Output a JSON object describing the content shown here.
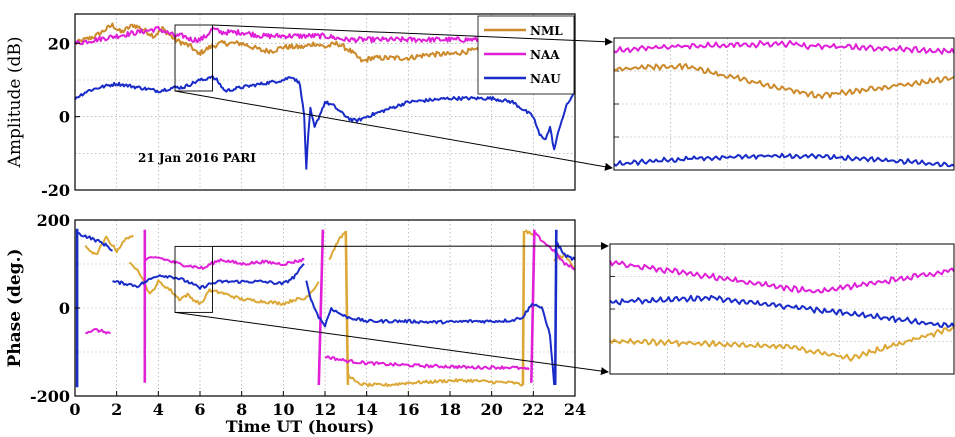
{
  "chart_data": [
    {
      "type": "line",
      "ylabel": "Amplitude (dB)",
      "xlim": [
        0,
        24
      ],
      "ylim": [
        -20,
        28
      ],
      "yticks": [
        20,
        0,
        -20
      ],
      "grid": true,
      "legend": {
        "position": "top-right",
        "entries": [
          "NML",
          "NAA",
          "NAU"
        ]
      },
      "annotation": "21 Jan 2016 PARI",
      "zoom_box_x": [
        4.8,
        6.6
      ],
      "zoom_box_y": [
        7,
        25
      ],
      "series": [
        {
          "name": "NML",
          "color": "#cc8a2a",
          "x": [
            0,
            1,
            1.8,
            2.2,
            2.8,
            3.2,
            3.8,
            4.2,
            4.8,
            5.2,
            5.6,
            5.9,
            6.2,
            6.5,
            7,
            8,
            9,
            9.5,
            10,
            11,
            11.5,
            12,
            12.6,
            13.2,
            13.8,
            14.2,
            15,
            16,
            17,
            18,
            19,
            20,
            21
          ],
          "y": [
            20,
            22,
            25,
            23,
            25,
            24,
            22,
            24,
            21,
            20,
            19,
            17,
            18,
            19,
            20,
            20,
            18,
            18,
            19,
            19,
            20,
            19,
            20,
            18,
            15,
            16,
            16,
            16,
            17,
            17,
            18,
            18,
            19
          ]
        },
        {
          "name": "NAA",
          "color": "#e020d8",
          "x": [
            0,
            1,
            2,
            3,
            4,
            4.8,
            5.2,
            5.6,
            6,
            6.3,
            6.6,
            7,
            8,
            9,
            10,
            11,
            12,
            13,
            14,
            15,
            16,
            17,
            18,
            19,
            20,
            21
          ],
          "y": [
            20,
            21,
            22,
            23,
            24,
            22,
            22,
            21,
            21,
            22,
            24,
            23,
            23,
            22,
            22,
            22,
            22,
            21,
            21,
            21,
            21,
            21,
            21,
            21,
            21,
            21
          ]
        },
        {
          "name": "NAU",
          "color": "#1a2cc8",
          "x": [
            0,
            0.6,
            1.2,
            2,
            3,
            4,
            4.8,
            5.2,
            5.6,
            6,
            6.2,
            6.5,
            6.8,
            7.2,
            8,
            9,
            10,
            10.4,
            10.8,
            11,
            11.1,
            11.2,
            11.3,
            11.5,
            12,
            12.4,
            12.8,
            13.3,
            13.6,
            14,
            15,
            16,
            18,
            20,
            21,
            22,
            22.3,
            22.6,
            22.8,
            23,
            23.3,
            23.6,
            24
          ],
          "y": [
            5,
            7,
            8,
            9,
            8,
            7,
            8,
            8,
            9,
            10,
            10,
            11,
            10,
            7,
            8,
            9,
            10,
            11,
            9,
            0,
            -14,
            -5,
            2,
            -3,
            4,
            3,
            1,
            -1,
            -1,
            0,
            2,
            4,
            5,
            5,
            4,
            0,
            -5,
            -6,
            -3,
            -9,
            -2,
            3,
            7
          ]
        }
      ]
    },
    {
      "type": "line",
      "ylabel": "Phase (deg.)",
      "xlabel": "Time UT (hours)",
      "xlim": [
        0,
        24
      ],
      "ylim": [
        -200,
        200
      ],
      "xticks": [
        0,
        2,
        4,
        6,
        8,
        10,
        12,
        14,
        16,
        18,
        20,
        22,
        24
      ],
      "yticks": [
        200,
        0,
        -200
      ],
      "grid": true,
      "zoom_box_x": [
        4.8,
        6.6
      ],
      "zoom_box_y": [
        -10,
        140
      ],
      "series": [
        {
          "name": "NML",
          "color": "#dca835",
          "segments": [
            {
              "x": [
                0.5,
                1,
                1.5,
                2,
                2.5,
                2.8
              ],
              "y": [
                140,
                120,
                160,
                130,
                160,
                165
              ]
            },
            {
              "x": [
                2.6,
                3,
                3.6,
                4,
                4.6,
                5,
                5.4,
                5.8,
                6.1,
                6.4,
                7,
                8,
                9,
                10,
                10.6,
                11,
                11.4,
                11.7
              ],
              "y": [
                100,
                90,
                30,
                60,
                40,
                20,
                30,
                15,
                10,
                40,
                35,
                20,
                15,
                10,
                20,
                20,
                40,
                60
              ]
            },
            {
              "x": [
                12.2,
                12.6,
                13.0
              ],
              "y": [
                110,
                150,
                175
              ]
            },
            {
              "x": [
                13.0,
                13.1
              ],
              "y": [
                175,
                -175
              ]
            },
            {
              "x": [
                13.1,
                13.5,
                14,
                15,
                16,
                17,
                18,
                19,
                20,
                21,
                21.5
              ],
              "y": [
                -150,
                -170,
                -175,
                -175,
                -170,
                -168,
                -165,
                -165,
                -168,
                -170,
                -175
              ]
            },
            {
              "x": [
                21.5,
                21.55
              ],
              "y": [
                -175,
                175
              ]
            },
            {
              "x": [
                21.6,
                22
              ],
              "y": [
                175,
                165
              ]
            },
            {
              "x": [
                23,
                23.5,
                24
              ],
              "y": [
                110,
                120,
                90
              ]
            }
          ]
        },
        {
          "name": "NAA",
          "color": "#e020d8",
          "segments": [
            {
              "x": [
                0.5,
                1,
                1.5,
                1.7
              ],
              "y": [
                -55,
                -50,
                -55,
                -58
              ]
            },
            {
              "x": [
                3.35,
                3.35
              ],
              "y": [
                -170,
                178
              ]
            },
            {
              "x": [
                3.35,
                4,
                5,
                5.6,
                6.2,
                6.5,
                7,
                8,
                9,
                10,
                10.5,
                11
              ],
              "y": [
                110,
                115,
                100,
                95,
                90,
                100,
                110,
                100,
                105,
                100,
                105,
                110
              ]
            },
            {
              "x": [
                11.7,
                11.9
              ],
              "y": [
                -175,
                178
              ]
            },
            {
              "x": [
                12,
                12.5,
                13,
                14,
                15,
                16,
                17,
                18,
                19,
                20,
                21,
                21.8
              ],
              "y": [
                -110,
                -115,
                -120,
                -125,
                -128,
                -130,
                -132,
                -133,
                -135,
                -135,
                -135,
                -140
              ]
            },
            {
              "x": [
                21.9,
                22.05
              ],
              "y": [
                -170,
                178
              ]
            },
            {
              "x": [
                22.05,
                22.5,
                23,
                23.5,
                24
              ],
              "y": [
                170,
                150,
                130,
                100,
                90
              ]
            }
          ]
        },
        {
          "name": "NAU",
          "color": "#1a2cc8",
          "segments": [
            {
              "x": [
                0.1,
                0.1
              ],
              "y": [
                -180,
                180
              ]
            },
            {
              "x": [
                0.1,
                0.7,
                1.2,
                1.6,
                1.8
              ],
              "y": [
                170,
                160,
                150,
                140,
                130
              ]
            },
            {
              "x": [
                1.8,
                2.5,
                3,
                4,
                4.8,
                5.4,
                6,
                6.5,
                7,
                8,
                9,
                10,
                10.5,
                11
              ],
              "y": [
                60,
                55,
                50,
                75,
                70,
                60,
                45,
                55,
                60,
                60,
                60,
                55,
                70,
                100
              ]
            },
            {
              "x": [
                11.1,
                11.4,
                11.7,
                12,
                12.3,
                12.6,
                13,
                13.5,
                14,
                15,
                16,
                17,
                18,
                19,
                20,
                21,
                21.5,
                21.8,
                22
              ],
              "y": [
                60,
                10,
                -20,
                -40,
                0,
                -10,
                -20,
                -25,
                -30,
                -30,
                -30,
                -32,
                -32,
                -30,
                -30,
                -28,
                -20,
                0,
                10
              ]
            },
            {
              "x": [
                22,
                22.4,
                22.8,
                23
              ],
              "y": [
                10,
                0,
                -60,
                -175
              ]
            },
            {
              "x": [
                23.05,
                23.1
              ],
              "y": [
                -175,
                178
              ]
            },
            {
              "x": [
                23.1,
                23.5,
                24
              ],
              "y": [
                150,
                120,
                110
              ]
            }
          ]
        }
      ]
    },
    {
      "type": "line",
      "role": "zoom-inset",
      "grid": true,
      "series": [
        {
          "name": "NAA",
          "color": "#e020d8"
        },
        {
          "name": "NML",
          "color": "#cc8a2a"
        },
        {
          "name": "NAU",
          "color": "#1a2cc8"
        }
      ]
    },
    {
      "type": "line",
      "role": "zoom-inset",
      "grid": true,
      "series": [
        {
          "name": "NAA",
          "color": "#e020d8"
        },
        {
          "name": "NAU",
          "color": "#1a2cc8"
        },
        {
          "name": "NML",
          "color": "#dca835"
        }
      ]
    }
  ]
}
